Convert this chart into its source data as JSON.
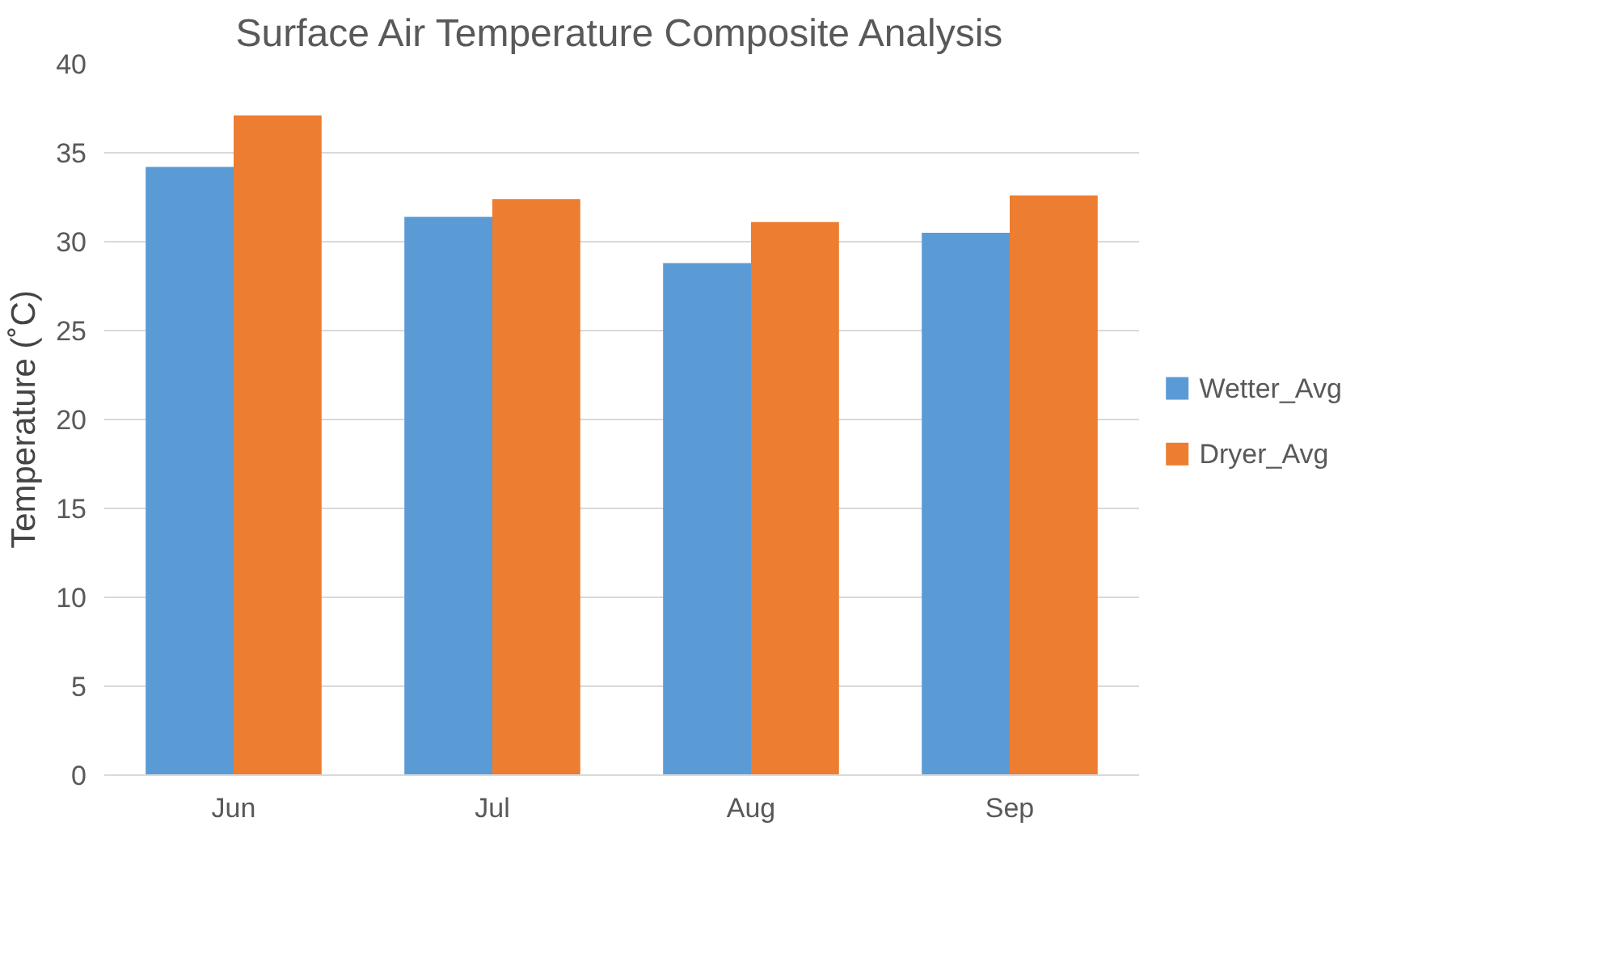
{
  "chart_data": {
    "type": "bar",
    "title": "Surface Air Temperature Composite Analysis",
    "ylabel": "Temperature (˚C)",
    "categories": [
      "Jun",
      "Jul",
      "Aug",
      "Sep"
    ],
    "series": [
      {
        "name": "Wetter_Avg",
        "color": "#5b9bd5",
        "values": [
          34.2,
          31.4,
          28.8,
          30.5
        ]
      },
      {
        "name": "Dryer_Avg",
        "color": "#ed7d31",
        "values": [
          37.1,
          32.4,
          31.1,
          32.6
        ]
      }
    ],
    "ylim": [
      0,
      40
    ],
    "yticks": [
      0,
      5,
      10,
      15,
      20,
      25,
      30,
      35,
      40
    ],
    "grid": "y",
    "legend": "right"
  }
}
